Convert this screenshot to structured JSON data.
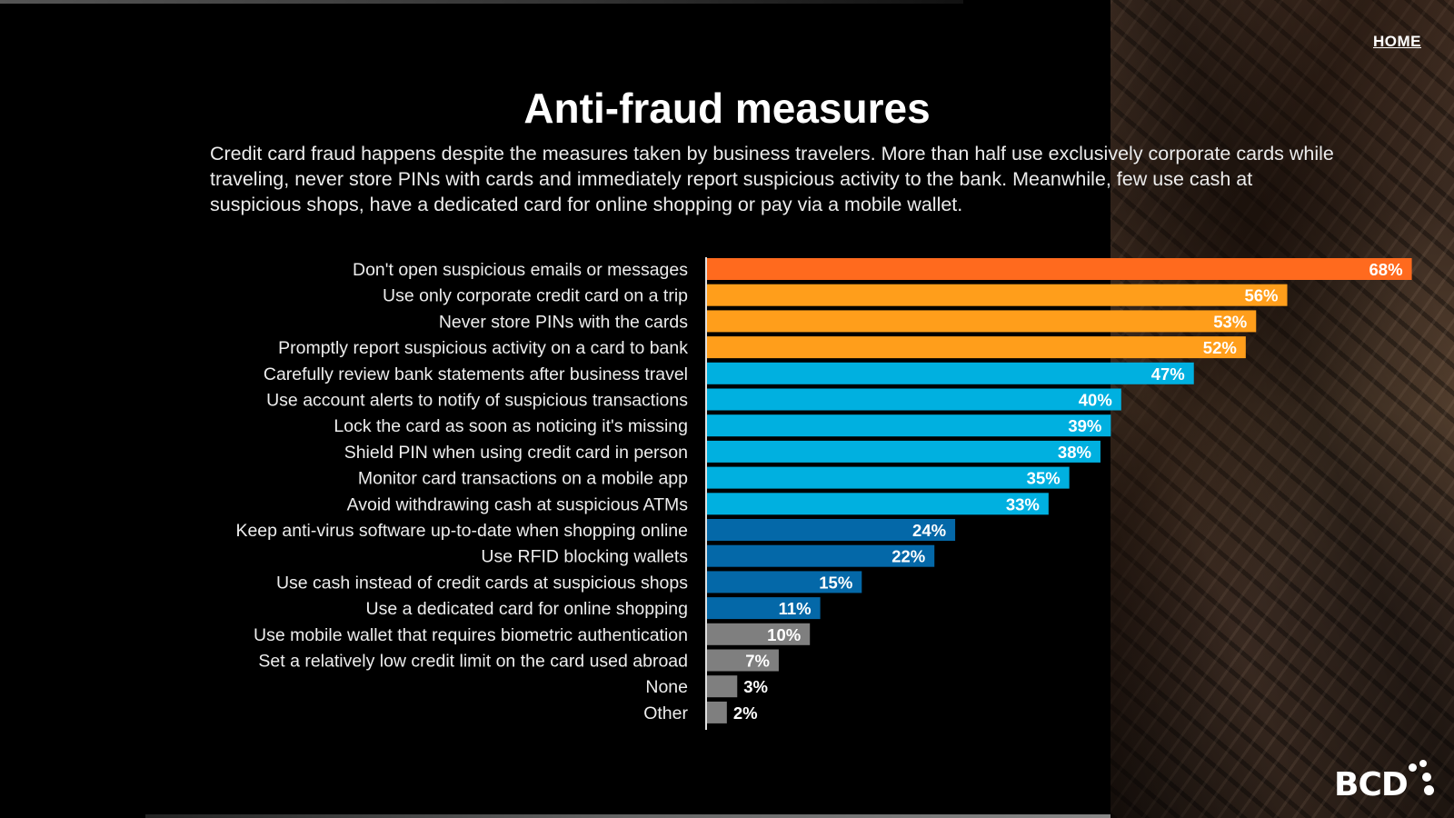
{
  "nav": {
    "home_label": "HOME"
  },
  "title": "Anti-fraud measures",
  "subtitle": "Credit card fraud happens despite the measures taken by business travelers. More than half use exclusively corporate cards while traveling, never store PINs with cards and immediately report suspicious activity to the bank. Meanwhile, few use cash at suspicious shops, have a dedicated card for online shopping or pay via a mobile wallet.",
  "logo": {
    "text": "BCD",
    "icon": "bcd-logo"
  },
  "chart_data": {
    "type": "bar",
    "orientation": "horizontal",
    "unit": "%",
    "xlim": [
      0,
      70
    ],
    "grid": false,
    "categories": [
      "Don't open suspicious emails or messages",
      "Use only corporate credit card on a trip",
      "Never store PINs with the cards",
      "Promptly report suspicious activity on a card to bank",
      "Carefully review bank statements after business travel",
      "Use account alerts to notify of suspicious transactions",
      "Lock the card as soon as noticing it's missing",
      "Shield PIN when using credit card in person",
      "Monitor card transactions on a mobile app",
      "Avoid withdrawing cash at suspicious ATMs",
      "Keep anti-virus software up-to-date when shopping online",
      "Use RFID blocking wallets",
      "Use cash instead of credit cards at suspicious shops",
      "Use a dedicated card for online shopping",
      "Use mobile wallet that requires biometric authentication",
      "Set a relatively low credit limit on the card used abroad",
      "None",
      "Other"
    ],
    "values": [
      68,
      56,
      53,
      52,
      47,
      40,
      39,
      38,
      35,
      33,
      24,
      22,
      15,
      11,
      10,
      7,
      3,
      2
    ],
    "labels": [
      "68%",
      "56%",
      "53%",
      "52%",
      "47%",
      "40%",
      "39%",
      "38%",
      "35%",
      "33%",
      "24%",
      "22%",
      "15%",
      "11%",
      "10%",
      "7%",
      "3%",
      "2%"
    ],
    "colors": [
      "#ff6a1e",
      "#ff9e1b",
      "#ff9e1b",
      "#ff9e1b",
      "#00b0e0",
      "#00b0e0",
      "#00b0e0",
      "#00b0e0",
      "#00b0e0",
      "#00b0e0",
      "#0468a8",
      "#0468a8",
      "#0468a8",
      "#0468a8",
      "#7f7f7f",
      "#7f7f7f",
      "#7f7f7f",
      "#7f7f7f"
    ]
  }
}
